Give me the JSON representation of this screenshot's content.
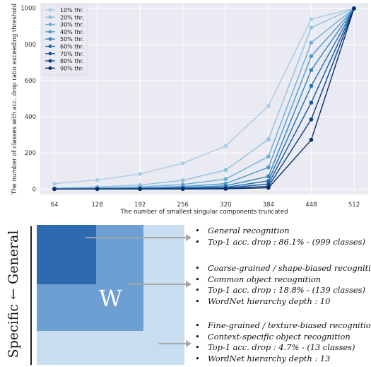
{
  "chart_data": {
    "type": "line",
    "title": "",
    "xlabel": "The number of smallest singular components truncated",
    "ylabel": "The number of classes with acc. drop ratio exceeding threshold",
    "x": [
      64,
      128,
      192,
      256,
      320,
      384,
      448,
      512
    ],
    "x_ticks": [
      "64",
      "128",
      "192",
      "256",
      "320",
      "384",
      "448",
      "512"
    ],
    "ylim": [
      -30,
      1030
    ],
    "y_ticks": [
      0,
      200,
      400,
      600,
      800,
      1000
    ],
    "grid": true,
    "legend_position": "top-left",
    "series": [
      {
        "name": "10% thr.",
        "color": "#a8cde5",
        "values": [
          30,
          50,
          83,
          143,
          238,
          460,
          940,
          1000
        ]
      },
      {
        "name": "20% thr.",
        "color": "#92c0df",
        "values": [
          5,
          12,
          22,
          48,
          105,
          275,
          893,
          1000
        ]
      },
      {
        "name": "30% thr.",
        "color": "#6aaed6",
        "values": [
          2,
          6,
          12,
          25,
          55,
          180,
          810,
          999
        ]
      },
      {
        "name": "40% thr.",
        "color": "#4d9ac9",
        "values": [
          1,
          3,
          6,
          14,
          30,
          120,
          735,
          999
        ]
      },
      {
        "name": "50% thr.",
        "color": "#3282be",
        "values": [
          0,
          2,
          4,
          8,
          18,
          70,
          658,
          999
        ]
      },
      {
        "name": "60% thr.",
        "color": "#1f6eb3",
        "values": [
          0,
          1,
          2,
          5,
          10,
          45,
          570,
          999
        ]
      },
      {
        "name": "70% thr.",
        "color": "#10559e",
        "values": [
          0,
          0,
          1,
          3,
          6,
          28,
          478,
          999
        ]
      },
      {
        "name": "80% thr.",
        "color": "#083f83",
        "values": [
          0,
          0,
          0,
          1,
          3,
          15,
          385,
          999
        ]
      },
      {
        "name": "90% thr.",
        "color": "#082b66",
        "values": [
          0,
          0,
          0,
          0,
          1,
          7,
          272,
          999
        ]
      }
    ]
  },
  "diagram": {
    "side_label": "Specific ← General",
    "matrix_label": "W",
    "groups": [
      {
        "items": [
          "General recognition",
          "Top-1 acc. drop : 86.1% - (999 classes)"
        ]
      },
      {
        "items": [
          "Coarse-grained / shape-biased recognition",
          "Common object recognition",
          "Top-1 acc. drop : 18.8% - (139 classes)",
          "WordNet hierarchy depth : 10"
        ]
      },
      {
        "items": [
          "Fine-grained / texture-biased recognition",
          "Context-specific object recognition",
          "Top-1 acc. drop : 4.7% - (13 classes)",
          "WordNet hierarchy depth : 13"
        ]
      }
    ]
  }
}
